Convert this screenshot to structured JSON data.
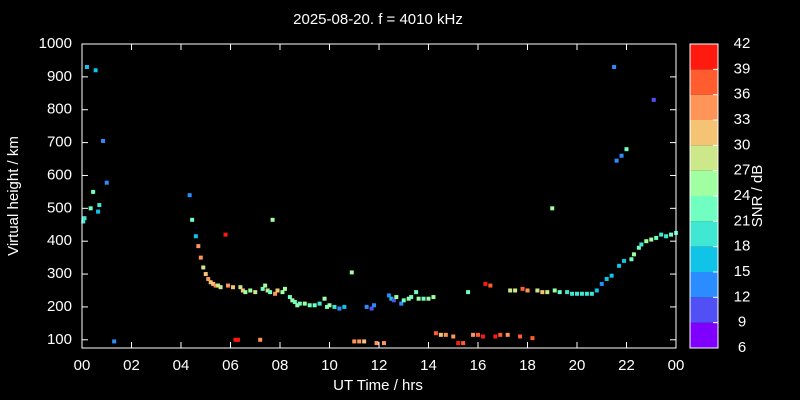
{
  "chart_data": {
    "type": "scatter",
    "title": "2025-08-20. f = 4010 kHz",
    "xlabel": "UT Time / hrs",
    "ylabel": "Virtual height / km",
    "xlim": [
      0,
      24
    ],
    "xticks": [
      {
        "value": 0,
        "label": "00"
      },
      {
        "value": 2,
        "label": "02"
      },
      {
        "value": 4,
        "label": "04"
      },
      {
        "value": 6,
        "label": "06"
      },
      {
        "value": 8,
        "label": "08"
      },
      10,
      12,
      14,
      16,
      18,
      20,
      22,
      {
        "value": 24,
        "label": "00"
      }
    ],
    "ylim": [
      75,
      1000
    ],
    "yticks": [
      100,
      200,
      300,
      400,
      500,
      600,
      700,
      800,
      900,
      1000
    ],
    "colorbar": {
      "label": "SNR / dB",
      "lim": [
        6,
        42
      ],
      "ticks": [
        6,
        9,
        12,
        15,
        18,
        21,
        24,
        27,
        30,
        33,
        36,
        39,
        42
      ],
      "colors": [
        "#8000ff",
        "#5050f5",
        "#2b8cff",
        "#10c4e8",
        "#40e8d4",
        "#70ffc0",
        "#a0ffa0",
        "#cce88a",
        "#f4c474",
        "#ff9458",
        "#ff5c30",
        "#ff1a10"
      ]
    },
    "series": [
      {
        "x": [
          0.05,
          0.1,
          0.2,
          0.35,
          0.45,
          0.55,
          0.65,
          0.7,
          0.85,
          1.0,
          1.3,
          4.35,
          4.45,
          4.6,
          4.7,
          4.8,
          4.9,
          5.0,
          5.1,
          5.2,
          5.3,
          5.4,
          5.5,
          5.6,
          5.8,
          5.9,
          6.1,
          6.2,
          6.3,
          6.4,
          6.5,
          6.6,
          6.8,
          7.0,
          7.2,
          7.3,
          7.4,
          7.5,
          7.6,
          7.7,
          7.8,
          7.9,
          8.1,
          8.2,
          8.4,
          8.5,
          8.6,
          8.7,
          8.8,
          9.0,
          9.2,
          9.4,
          9.6,
          9.8,
          9.9,
          10.0,
          10.2,
          10.4,
          10.6,
          10.9,
          11.0,
          11.2,
          11.4,
          11.5,
          11.7,
          11.8,
          11.9,
          12.2,
          12.4,
          12.5,
          12.6,
          12.7,
          12.9,
          13.0,
          13.2,
          13.3,
          13.5,
          13.6,
          13.8,
          14.0,
          14.2,
          14.3,
          14.5,
          14.7,
          15.0,
          15.2,
          15.4,
          15.6,
          15.8,
          16.0,
          16.2,
          16.3,
          16.5,
          16.7,
          16.9,
          17.2,
          17.3,
          17.5,
          17.7,
          17.8,
          18.0,
          18.2,
          18.4,
          18.6,
          18.8,
          19.0,
          19.1,
          19.3,
          19.6,
          19.8,
          20.0,
          20.2,
          20.4,
          20.6,
          20.8,
          21.0,
          21.2,
          21.4,
          21.5,
          21.6,
          21.7,
          21.8,
          21.9,
          22.0,
          22.2,
          22.3,
          22.5,
          22.6,
          22.8,
          23.0,
          23.1,
          23.2,
          23.4,
          23.6,
          23.8,
          24.0
        ],
        "values": [
          460,
          470,
          930,
          500,
          550,
          920,
          490,
          510,
          705,
          578,
          95,
          540,
          465,
          415,
          385,
          350,
          320,
          300,
          285,
          275,
          270,
          265,
          265,
          260,
          420,
          265,
          260,
          100,
          100,
          260,
          250,
          245,
          250,
          245,
          100,
          255,
          265,
          250,
          245,
          465,
          240,
          250,
          245,
          255,
          230,
          220,
          215,
          205,
          210,
          210,
          205,
          205,
          210,
          225,
          200,
          205,
          200,
          195,
          200,
          305,
          95,
          95,
          95,
          200,
          195,
          205,
          90,
          90,
          235,
          225,
          220,
          230,
          210,
          220,
          225,
          230,
          245,
          225,
          225,
          225,
          230,
          120,
          115,
          115,
          110,
          90,
          90,
          245,
          115,
          115,
          110,
          270,
          265,
          110,
          115,
          115,
          250,
          250,
          110,
          255,
          250,
          105,
          250,
          245,
          245,
          500,
          250,
          245,
          245,
          240,
          240,
          240,
          240,
          240,
          250,
          270,
          285,
          295,
          930,
          645,
          325,
          660,
          340,
          680,
          345,
          360,
          380,
          390,
          400,
          405,
          830,
          410,
          420,
          415,
          420,
          425
        ],
        "snr": [
          18,
          18,
          15,
          21,
          21,
          15,
          15,
          18,
          12,
          12,
          12,
          12,
          21,
          15,
          33,
          33,
          27,
          30,
          33,
          30,
          30,
          33,
          27,
          27,
          39,
          33,
          30,
          39,
          39,
          27,
          30,
          24,
          24,
          27,
          33,
          21,
          24,
          27,
          21,
          24,
          33,
          30,
          24,
          24,
          21,
          24,
          21,
          24,
          21,
          24,
          21,
          21,
          18,
          24,
          21,
          24,
          18,
          12,
          15,
          24,
          33,
          33,
          30,
          12,
          9,
          12,
          33,
          33,
          12,
          15,
          9,
          24,
          12,
          21,
          24,
          21,
          21,
          24,
          21,
          24,
          24,
          36,
          30,
          33,
          33,
          39,
          36,
          21,
          33,
          36,
          39,
          39,
          36,
          39,
          36,
          33,
          27,
          27,
          36,
          36,
          33,
          36,
          27,
          30,
          27,
          24,
          24,
          21,
          18,
          18,
          18,
          18,
          18,
          18,
          15,
          12,
          15,
          15,
          12,
          12,
          15,
          12,
          15,
          21,
          21,
          24,
          21,
          18,
          24,
          24,
          9,
          21,
          18,
          18,
          21,
          18
        ]
      }
    ]
  }
}
